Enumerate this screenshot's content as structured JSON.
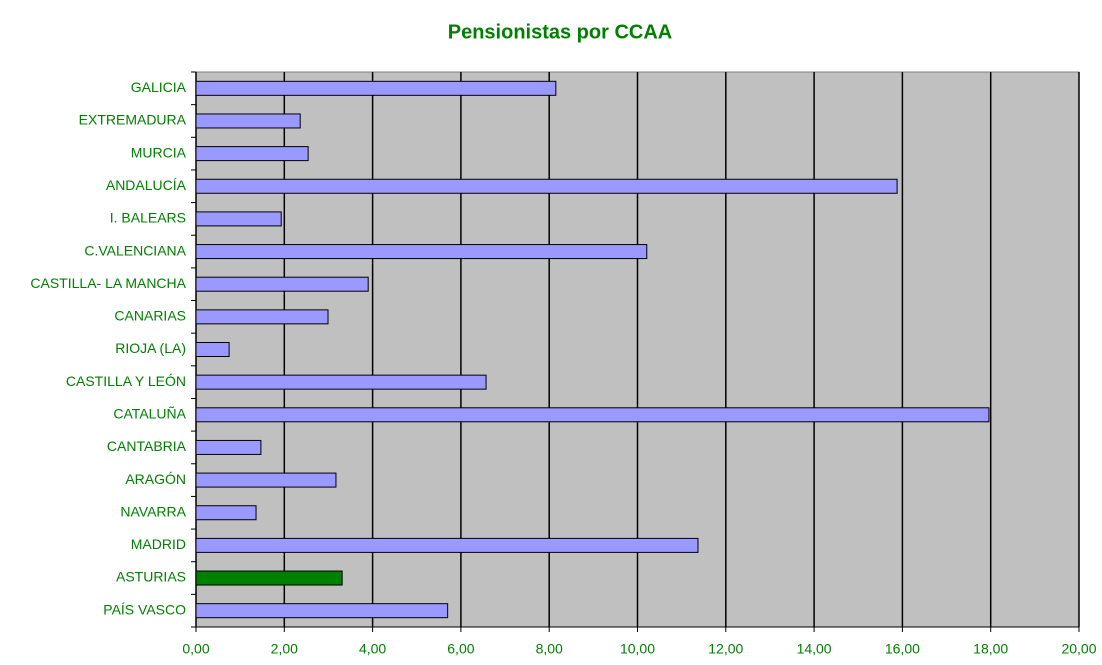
{
  "chart_data": {
    "type": "bar",
    "orientation": "horizontal",
    "title": "Pensionistas por CCAA",
    "categories": [
      "GALICIA",
      "EXTREMADURA",
      "MURCIA",
      "ANDALUCÍA",
      "I. BALEARS",
      "C.VALENCIANA",
      "CASTILLA- LA MANCHA",
      "CANARIAS",
      "RIOJA (LA)",
      "CASTILLA Y LEÓN",
      "CATALUÑA",
      "CANTABRIA",
      "ARAGÓN",
      "NAVARRA",
      "MADRID",
      "ASTURIAS",
      "PAÍS VASCO"
    ],
    "values": [
      8.15,
      2.36,
      2.54,
      15.88,
      1.93,
      10.21,
      3.9,
      2.99,
      0.75,
      6.57,
      17.96,
      1.47,
      3.17,
      1.36,
      11.37,
      3.31,
      5.7
    ],
    "colors": [
      "#9999ff",
      "#9999ff",
      "#9999ff",
      "#9999ff",
      "#9999ff",
      "#9999ff",
      "#9999ff",
      "#9999ff",
      "#9999ff",
      "#9999ff",
      "#9999ff",
      "#9999ff",
      "#9999ff",
      "#9999ff",
      "#9999ff",
      "#008000",
      "#9999ff"
    ],
    "xlim": [
      0,
      20
    ],
    "xticks": [
      {
        "value": 0,
        "label": "0,00"
      },
      {
        "value": 2,
        "label": "2,00"
      },
      {
        "value": 4,
        "label": "4,00"
      },
      {
        "value": 6,
        "label": "6,00"
      },
      {
        "value": 8,
        "label": "8,00"
      },
      {
        "value": 10,
        "label": "10,00"
      },
      {
        "value": 12,
        "label": "12,00"
      },
      {
        "value": 14,
        "label": "14,00"
      },
      {
        "value": 16,
        "label": "16,00"
      },
      {
        "value": 18,
        "label": "18,00"
      },
      {
        "value": 20,
        "label": "20,00"
      }
    ],
    "grid": true
  }
}
